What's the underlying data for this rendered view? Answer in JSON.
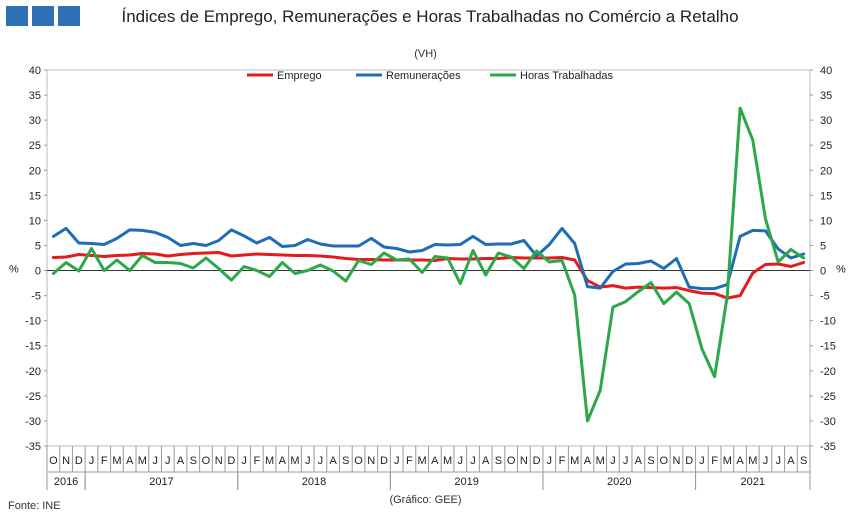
{
  "header": {
    "title": "Índices de Emprego, Remunerações e Horas Trabalhadas no Comércio a Retalho",
    "subtitle": "(VH)"
  },
  "footer": {
    "source": "Fonte: INE",
    "credit": "(Gráfico: GEE)"
  },
  "colors": {
    "logo": "#2f6fb4"
  },
  "chart_data": {
    "type": "line",
    "ylabel": "%",
    "ylim": [
      -35,
      40
    ],
    "yticks": [
      40,
      35,
      30,
      25,
      20,
      15,
      10,
      5,
      0,
      -5,
      -10,
      -15,
      -20,
      -25,
      -30,
      -35
    ],
    "legend_position": "top-center",
    "x": [
      "O",
      "N",
      "D",
      "J",
      "F",
      "M",
      "A",
      "M",
      "J",
      "J",
      "A",
      "S",
      "O",
      "N",
      "D",
      "J",
      "F",
      "M",
      "A",
      "M",
      "J",
      "J",
      "A",
      "S",
      "O",
      "N",
      "D",
      "J",
      "F",
      "M",
      "A",
      "M",
      "J",
      "J",
      "A",
      "S",
      "O",
      "N",
      "D",
      "J",
      "F",
      "M",
      "A",
      "M",
      "J",
      "J",
      "A",
      "S",
      "O",
      "N",
      "D",
      "J",
      "F",
      "M",
      "A",
      "M",
      "J",
      "J",
      "A",
      "S"
    ],
    "years": [
      {
        "label": "2016",
        "start": 0,
        "end": 2
      },
      {
        "label": "2017",
        "start": 3,
        "end": 14
      },
      {
        "label": "2018",
        "start": 15,
        "end": 26
      },
      {
        "label": "2019",
        "start": 27,
        "end": 38
      },
      {
        "label": "2020",
        "start": 39,
        "end": 50
      },
      {
        "label": "2021",
        "start": 51,
        "end": 59
      }
    ],
    "series": [
      {
        "name": "Emprego",
        "color": "#e41a1c",
        "values": [
          2.6,
          2.7,
          3.2,
          3.0,
          2.8,
          3.0,
          3.1,
          3.4,
          3.3,
          2.9,
          3.2,
          3.4,
          3.5,
          3.6,
          2.9,
          3.1,
          3.3,
          3.2,
          3.1,
          3.0,
          3.0,
          2.9,
          2.7,
          2.4,
          2.2,
          2.2,
          2.1,
          2.1,
          2.1,
          2.1,
          2.0,
          2.4,
          2.3,
          2.3,
          2.4,
          2.4,
          2.6,
          2.5,
          2.5,
          2.5,
          2.6,
          2.1,
          -2.0,
          -3.3,
          -3.0,
          -3.5,
          -3.3,
          -3.4,
          -3.5,
          -3.4,
          -4.0,
          -4.5,
          -4.6,
          -5.5,
          -5.0,
          -0.5,
          1.2,
          1.3,
          0.8,
          1.6
        ]
      },
      {
        "name": "Remunerações",
        "color": "#1f6db4",
        "values": [
          6.8,
          8.4,
          5.5,
          5.4,
          5.2,
          6.4,
          8.1,
          8.0,
          7.6,
          6.6,
          5.0,
          5.4,
          5.0,
          6.0,
          8.1,
          6.9,
          5.5,
          6.6,
          4.8,
          5.0,
          6.2,
          5.3,
          4.9,
          4.9,
          4.9,
          6.4,
          4.7,
          4.4,
          3.7,
          4.0,
          5.2,
          5.1,
          5.2,
          6.8,
          5.2,
          5.3,
          5.3,
          6.0,
          2.9,
          5.2,
          8.4,
          5.4,
          -3.2,
          -3.5,
          -0.2,
          1.3,
          1.4,
          1.9,
          0.4,
          2.4,
          -3.3,
          -3.6,
          -3.6,
          -2.8,
          6.8,
          8.0,
          7.9,
          4.3,
          2.5,
          3.3
        ]
      },
      {
        "name": "Horas Trabalhadas",
        "color": "#2ca84a",
        "values": [
          -0.6,
          1.6,
          -0.1,
          4.4,
          0.0,
          2.1,
          0.0,
          3.0,
          1.6,
          1.6,
          1.4,
          0.5,
          2.5,
          0.4,
          -1.9,
          0.8,
          0.0,
          -1.2,
          1.6,
          -0.6,
          0.0,
          1.1,
          -0.1,
          -2.1,
          2.0,
          1.2,
          3.5,
          2.1,
          2.3,
          -0.4,
          2.8,
          2.5,
          -2.6,
          4.0,
          -0.9,
          3.5,
          2.7,
          0.4,
          3.9,
          1.7,
          2.0,
          -4.9,
          -30.0,
          -23.9,
          -7.3,
          -6.2,
          -4.2,
          -2.4,
          -6.6,
          -4.3,
          -6.6,
          -15.6,
          -21.2,
          -5.0,
          32.4,
          26.0,
          10.3,
          1.7,
          4.2,
          2.5
        ]
      }
    ]
  }
}
